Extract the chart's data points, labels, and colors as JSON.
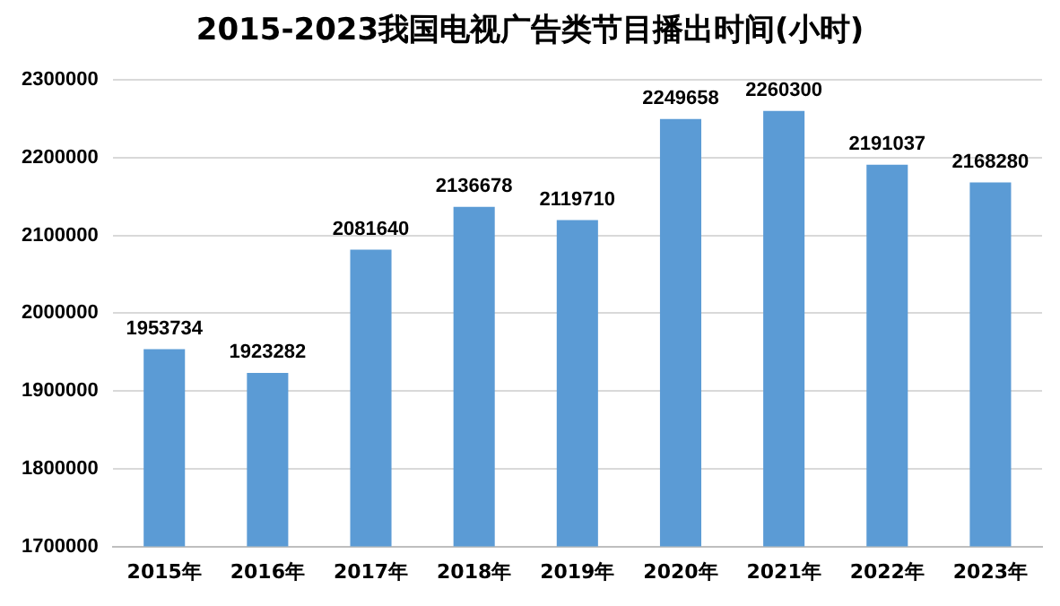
{
  "chart_data": {
    "type": "bar",
    "title": "2015-2023我国电视广告类节目播出时间(小时)",
    "categories": [
      "2015年",
      "2016年",
      "2017年",
      "2018年",
      "2019年",
      "2020年",
      "2021年",
      "2022年",
      "2023年"
    ],
    "values": [
      1953734,
      1923282,
      2081640,
      2136678,
      2119710,
      2249658,
      2260300,
      2191037,
      2168280
    ],
    "color": "#5b9bd5",
    "ylim": [
      1700000,
      2300000
    ],
    "yticks": [
      1700000,
      1800000,
      1900000,
      2000000,
      2100000,
      2200000,
      2300000
    ],
    "grid": "y",
    "data_labels": true
  }
}
